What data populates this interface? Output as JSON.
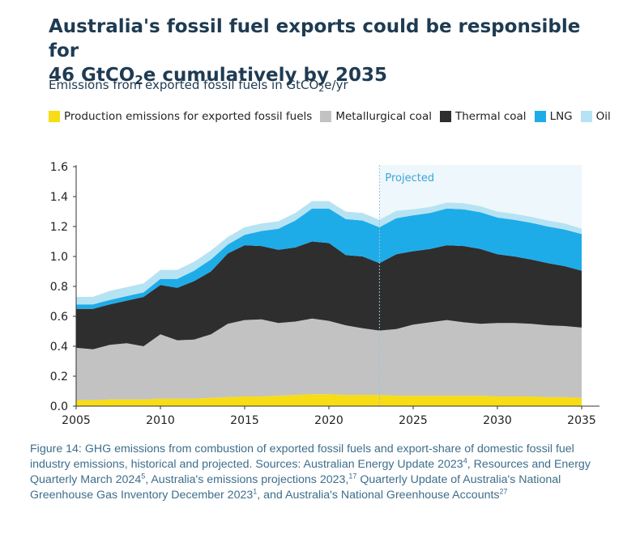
{
  "title": {
    "line1": "Australia's fossil fuel exports could be responsible for",
    "line2_pre": "46 GtCO",
    "line2_sub": "2",
    "line2_post": "e cumulatively by 2035"
  },
  "subtitle": {
    "pre": "Emissions from exported fossil fuels in GtCO",
    "sub": "2",
    "post": "e/yr"
  },
  "colors": {
    "production": "#f7dc16",
    "metallurgical": "#c2c2c2",
    "thermal": "#2e2e2e",
    "lng": "#1eace8",
    "oil": "#b6e3f4",
    "projected_band": "#eef7fb",
    "projected_line": "#8fc6e0",
    "projected_text": "#3aa6d8",
    "axis": "#333333"
  },
  "chart_data": {
    "type": "area",
    "stacked": true,
    "x": [
      2005,
      2006,
      2007,
      2008,
      2009,
      2010,
      2011,
      2012,
      2013,
      2014,
      2015,
      2016,
      2017,
      2018,
      2019,
      2020,
      2021,
      2022,
      2023,
      2024,
      2025,
      2026,
      2027,
      2028,
      2029,
      2030,
      2031,
      2032,
      2033,
      2034,
      2035
    ],
    "series": [
      {
        "name": "Production emissions for exported fossil fuels",
        "color_key": "production",
        "values": [
          0.04,
          0.04,
          0.045,
          0.045,
          0.045,
          0.05,
          0.05,
          0.05,
          0.055,
          0.06,
          0.065,
          0.065,
          0.07,
          0.075,
          0.08,
          0.08,
          0.075,
          0.075,
          0.075,
          0.07,
          0.07,
          0.07,
          0.07,
          0.07,
          0.07,
          0.065,
          0.065,
          0.065,
          0.06,
          0.06,
          0.055
        ]
      },
      {
        "name": "Metallurgical coal",
        "color_key": "metallurgical",
        "values": [
          0.35,
          0.34,
          0.365,
          0.375,
          0.355,
          0.43,
          0.39,
          0.395,
          0.425,
          0.49,
          0.51,
          0.515,
          0.485,
          0.49,
          0.505,
          0.49,
          0.465,
          0.445,
          0.43,
          0.445,
          0.475,
          0.49,
          0.505,
          0.49,
          0.48,
          0.49,
          0.49,
          0.485,
          0.48,
          0.475,
          0.47
        ]
      },
      {
        "name": "Thermal coal",
        "color_key": "thermal",
        "values": [
          0.26,
          0.27,
          0.27,
          0.285,
          0.33,
          0.33,
          0.35,
          0.39,
          0.42,
          0.47,
          0.5,
          0.49,
          0.49,
          0.495,
          0.515,
          0.52,
          0.47,
          0.48,
          0.45,
          0.5,
          0.49,
          0.49,
          0.5,
          0.51,
          0.5,
          0.46,
          0.445,
          0.43,
          0.415,
          0.4,
          0.38
        ]
      },
      {
        "name": "LNG",
        "color_key": "lng",
        "values": [
          0.03,
          0.03,
          0.03,
          0.03,
          0.03,
          0.04,
          0.06,
          0.07,
          0.08,
          0.06,
          0.07,
          0.1,
          0.14,
          0.18,
          0.22,
          0.23,
          0.24,
          0.24,
          0.24,
          0.24,
          0.24,
          0.24,
          0.245,
          0.245,
          0.245,
          0.245,
          0.245,
          0.245,
          0.245,
          0.245,
          0.245
        ]
      },
      {
        "name": "Oil",
        "color_key": "oil",
        "values": [
          0.05,
          0.05,
          0.06,
          0.06,
          0.06,
          0.06,
          0.06,
          0.06,
          0.06,
          0.05,
          0.05,
          0.05,
          0.05,
          0.05,
          0.05,
          0.05,
          0.05,
          0.05,
          0.05,
          0.05,
          0.04,
          0.04,
          0.04,
          0.04,
          0.04,
          0.04,
          0.04,
          0.04,
          0.04,
          0.04,
          0.035
        ]
      }
    ],
    "projected_from": 2023,
    "projected_label": "Projected",
    "xlim": [
      2005,
      2035
    ],
    "ylim": [
      0,
      1.6
    ],
    "x_ticks": [
      "2005",
      "2010",
      "2015",
      "2020",
      "2025",
      "2030",
      "2035"
    ],
    "y_ticks": [
      "0.0",
      "0.2",
      "0.4",
      "0.6",
      "0.8",
      "1.0",
      "1.2",
      "1.4",
      "1.6"
    ],
    "legend_position": "top",
    "grid": false
  },
  "caption": {
    "p1": "Figure 14: GHG emissions from combustion of exported fossil fuels and export-share of domestic fossil fuel industry emissions, historical and projected. Sources: Australian Energy Update 2023",
    "s1": "4",
    "p2": ",  Resources and Energy Quarterly March 2024",
    "s2": "5",
    "p3": ",  Australia's emissions projections 2023,",
    "s3": "17",
    "p4": "  Quarterly Update of Australia's National Greenhouse Gas Inventory December 2023",
    "s4": "1",
    "p5": ",  and Australia's National Greenhouse Accounts",
    "s5": "27"
  }
}
